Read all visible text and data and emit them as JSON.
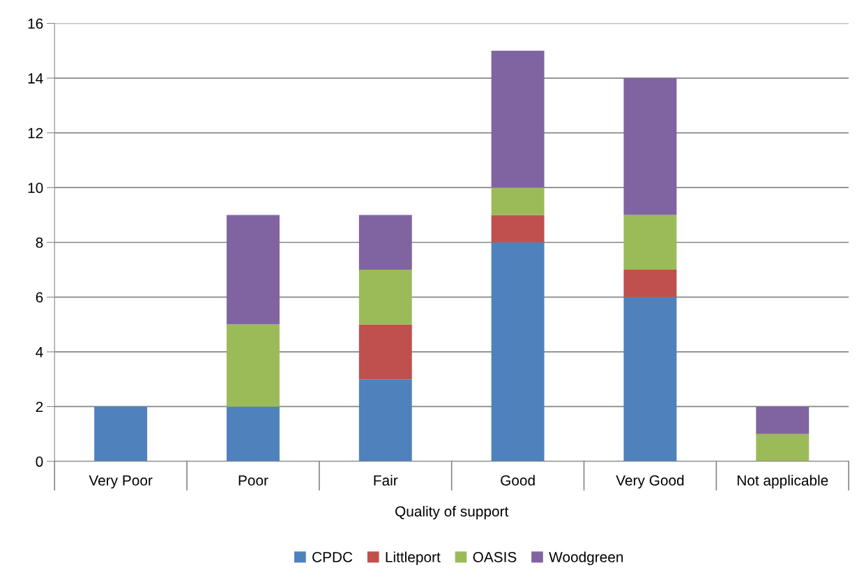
{
  "chart_data": {
    "type": "bar",
    "stacked": true,
    "xlabel": "Quality of support",
    "categories": [
      "Very Poor",
      "Poor",
      "Fair",
      "Good",
      "Very Good",
      "Not applicable"
    ],
    "series": [
      {
        "name": "CPDC",
        "color": "#4f81bd",
        "values": [
          2,
          2,
          3,
          8,
          6,
          0
        ]
      },
      {
        "name": "Littleport",
        "color": "#c0504d",
        "values": [
          0,
          0,
          2,
          1,
          1,
          0
        ]
      },
      {
        "name": "OASIS",
        "color": "#9bbb59",
        "values": [
          0,
          3,
          2,
          1,
          2,
          1
        ]
      },
      {
        "name": "Woodgreen",
        "color": "#8064a2",
        "values": [
          0,
          4,
          2,
          5,
          5,
          1
        ]
      }
    ],
    "ylim": [
      0,
      16
    ],
    "yticks": [
      0,
      2,
      4,
      6,
      8,
      10,
      12,
      14,
      16
    ],
    "grid": "y",
    "legend": "bottom"
  }
}
